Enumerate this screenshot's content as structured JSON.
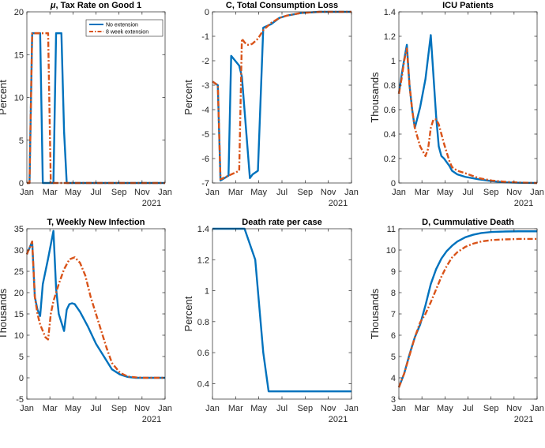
{
  "colors": {
    "series1": "#0072BD",
    "series2": "#D95319",
    "axis": "#262626"
  },
  "year_label": "2021",
  "x_tick_labels": [
    "Jan",
    "Mar",
    "May",
    "Jul",
    "Sep",
    "Nov",
    "Jan"
  ],
  "legend": {
    "series1": "No extension",
    "series2": "8 week extension"
  },
  "chart_data": [
    {
      "type": "line",
      "title": "μ, Tax Rate on Good 1",
      "title_prefix": "μ",
      "title_rest": ", Tax Rate on Good 1",
      "ylabel": "Percent",
      "ylim": [
        0,
        20
      ],
      "yticks": [
        0,
        5,
        10,
        15,
        20
      ],
      "ytick_labels": [
        "0",
        "5",
        "10",
        "15",
        "20"
      ],
      "xlim": [
        0,
        52
      ],
      "legend_shown": true,
      "legend_loc": "top-right",
      "series": [
        {
          "name": "No extension",
          "style": "solid",
          "x": [
            0,
            1,
            2,
            3,
            4,
            5,
            6,
            7,
            8,
            9,
            10,
            11,
            12,
            13,
            14,
            15,
            16,
            17,
            18,
            52
          ],
          "y": [
            0,
            0,
            17.5,
            17.5,
            17.5,
            17.5,
            0,
            0,
            0,
            0,
            0,
            17.5,
            17.5,
            17.5,
            6,
            0,
            0,
            0,
            0,
            0
          ]
        },
        {
          "name": "8 week extension",
          "style": "dashdot",
          "x": [
            0,
            1,
            2,
            3,
            4,
            5,
            6,
            7,
            8,
            9,
            10,
            11,
            52
          ],
          "y": [
            0,
            0,
            17.5,
            17.5,
            17.5,
            17.5,
            17.5,
            17.5,
            17.5,
            0,
            0,
            0,
            0
          ]
        }
      ]
    },
    {
      "type": "line",
      "title": "C, Total Consumption Loss",
      "ylabel": "Percent",
      "ylim": [
        -7,
        0
      ],
      "yticks": [
        -7,
        -6,
        -5,
        -4,
        -3,
        -2,
        -1,
        0
      ],
      "ytick_labels": [
        "-7",
        "-6",
        "-5",
        "-4",
        "-3",
        "-2",
        "-1",
        "0"
      ],
      "xlim": [
        0,
        52
      ],
      "legend_shown": false,
      "series": [
        {
          "name": "No extension",
          "style": "solid",
          "x": [
            0,
            2,
            3,
            6,
            7,
            10,
            11,
            14,
            15,
            17,
            19,
            22,
            25,
            28,
            33,
            40,
            45,
            52
          ],
          "y": [
            -2.85,
            -3,
            -6.9,
            -6.7,
            -1.8,
            -2.2,
            -2.65,
            -6.8,
            -6.65,
            -6.5,
            -0.65,
            -0.5,
            -0.25,
            -0.15,
            -0.05,
            0,
            0,
            0
          ]
        },
        {
          "name": "8 week extension",
          "style": "dashdot",
          "x": [
            0,
            2,
            3,
            6,
            8,
            10,
            11,
            12,
            13,
            14,
            15,
            17,
            19,
            22,
            25,
            28,
            33,
            40,
            45,
            52
          ],
          "y": [
            -2.85,
            -3,
            -6.85,
            -6.7,
            -6.6,
            -6.5,
            -1.1,
            -1.25,
            -1.35,
            -1.35,
            -1.3,
            -1.1,
            -0.75,
            -0.45,
            -0.25,
            -0.15,
            -0.05,
            0,
            0,
            0
          ]
        }
      ]
    },
    {
      "type": "line",
      "title": "ICU Patients",
      "ylabel": "Thousands",
      "ylim": [
        0,
        1.4
      ],
      "yticks": [
        0,
        0.2,
        0.4,
        0.6,
        0.8,
        1,
        1.2,
        1.4
      ],
      "ytick_labels": [
        "0",
        "0.2",
        "0.4",
        "0.6",
        "0.8",
        "1",
        "1.2",
        "1.4"
      ],
      "xlim": [
        0,
        52
      ],
      "legend_shown": false,
      "series": [
        {
          "name": "No extension",
          "style": "solid",
          "x": [
            0,
            1,
            2,
            3,
            4,
            5,
            6,
            8,
            10,
            12,
            14,
            15,
            16,
            17,
            18,
            19,
            20,
            22,
            25,
            30,
            35,
            40,
            45,
            52
          ],
          "y": [
            0.73,
            0.88,
            1.01,
            1.13,
            0.8,
            0.6,
            0.45,
            0.62,
            0.85,
            1.21,
            0.55,
            0.3,
            0.22,
            0.2,
            0.17,
            0.14,
            0.1,
            0.07,
            0.05,
            0.03,
            0.015,
            0.005,
            0.002,
            0
          ]
        },
        {
          "name": "8 week extension",
          "style": "dashdot",
          "x": [
            0,
            1,
            2,
            3,
            4,
            5,
            6,
            8,
            10,
            11,
            12,
            13,
            14,
            15,
            16,
            17,
            18,
            19,
            20,
            22,
            25,
            30,
            35,
            40,
            45,
            52
          ],
          "y": [
            0.73,
            0.85,
            1.0,
            1.1,
            0.8,
            0.6,
            0.45,
            0.3,
            0.22,
            0.28,
            0.45,
            0.52,
            0.52,
            0.48,
            0.4,
            0.32,
            0.25,
            0.18,
            0.13,
            0.1,
            0.08,
            0.04,
            0.02,
            0.01,
            0.004,
            0
          ]
        }
      ]
    },
    {
      "type": "line",
      "title": "T, Weekly New Infection",
      "ylabel": "Thousands",
      "ylim": [
        -5,
        35
      ],
      "yticks": [
        -5,
        0,
        5,
        10,
        15,
        20,
        25,
        30,
        35
      ],
      "ytick_labels": [
        "-5",
        "0",
        "5",
        "10",
        "15",
        "20",
        "25",
        "30",
        "35"
      ],
      "xlim": [
        0,
        52
      ],
      "legend_shown": false,
      "series": [
        {
          "name": "No extension",
          "style": "solid",
          "x": [
            0,
            1,
            2,
            3,
            4,
            5,
            6,
            8,
            10,
            11,
            12,
            14,
            15,
            16,
            17,
            18,
            20,
            23,
            26,
            29,
            32,
            35,
            38,
            41,
            44,
            47,
            52
          ],
          "y": [
            29,
            30.5,
            32,
            19,
            16,
            14.5,
            22,
            28,
            34.5,
            21,
            15,
            11,
            16,
            17.3,
            17.5,
            17.3,
            15.5,
            12,
            8,
            5,
            2,
            0.8,
            0.2,
            0,
            0,
            0,
            0
          ]
        },
        {
          "name": "8 week extension",
          "style": "dashdot",
          "x": [
            0,
            1,
            2,
            3,
            4,
            5,
            6,
            7,
            8,
            9,
            10,
            12,
            14,
            16,
            18,
            20,
            22,
            24,
            26,
            28,
            30,
            32,
            35,
            38,
            41,
            44,
            47,
            52
          ],
          "y": [
            29,
            30.5,
            32,
            19,
            15,
            12.5,
            11,
            9.5,
            9,
            15,
            18,
            22,
            25.5,
            27.8,
            28.3,
            27,
            24,
            19,
            15,
            11,
            7,
            3.5,
            1.2,
            0.3,
            0.1,
            0,
            0,
            0
          ]
        }
      ]
    },
    {
      "type": "line",
      "title": "Death rate per case",
      "ylabel": "Percent",
      "ylim": [
        0.3,
        1.4
      ],
      "yticks": [
        0.4,
        0.6,
        0.8,
        1.0,
        1.2,
        1.4
      ],
      "ytick_labels": [
        "0.4",
        "0.6",
        "0.8",
        "1",
        "1.2",
        "1.4"
      ],
      "xlim": [
        0,
        52
      ],
      "legend_shown": false,
      "series": [
        {
          "name": "No extension",
          "style": "solid",
          "x": [
            0,
            5,
            10,
            12,
            16,
            17,
            19,
            21,
            52
          ],
          "y": [
            1.4,
            1.4,
            1.4,
            1.4,
            1.2,
            1.0,
            0.6,
            0.35,
            0.35
          ]
        }
      ]
    },
    {
      "type": "line",
      "title": "D, Cummulative Death",
      "ylabel": "Thousands",
      "ylim": [
        3,
        11
      ],
      "yticks": [
        3,
        4,
        5,
        6,
        7,
        8,
        9,
        10,
        11
      ],
      "ytick_labels": [
        "3",
        "4",
        "5",
        "6",
        "7",
        "8",
        "9",
        "10",
        "11"
      ],
      "xlim": [
        0,
        52
      ],
      "legend_shown": false,
      "series": [
        {
          "name": "No extension",
          "style": "solid",
          "x": [
            0,
            2,
            4,
            6,
            8,
            10,
            12,
            14,
            16,
            18,
            20,
            22,
            25,
            28,
            31,
            35,
            40,
            45,
            52
          ],
          "y": [
            3.55,
            4.2,
            5.1,
            5.9,
            6.5,
            7.4,
            8.4,
            9.1,
            9.6,
            9.95,
            10.2,
            10.4,
            10.6,
            10.72,
            10.8,
            10.85,
            10.87,
            10.88,
            10.88
          ]
        },
        {
          "name": "8 week extension",
          "style": "dashdot",
          "x": [
            0,
            2,
            4,
            6,
            8,
            10,
            12,
            14,
            16,
            18,
            20,
            22,
            25,
            28,
            31,
            35,
            40,
            45,
            52
          ],
          "y": [
            3.55,
            4.2,
            5.05,
            5.9,
            6.6,
            7.0,
            7.55,
            8.15,
            8.75,
            9.25,
            9.65,
            9.9,
            10.15,
            10.3,
            10.4,
            10.47,
            10.5,
            10.52,
            10.52
          ]
        }
      ]
    }
  ]
}
